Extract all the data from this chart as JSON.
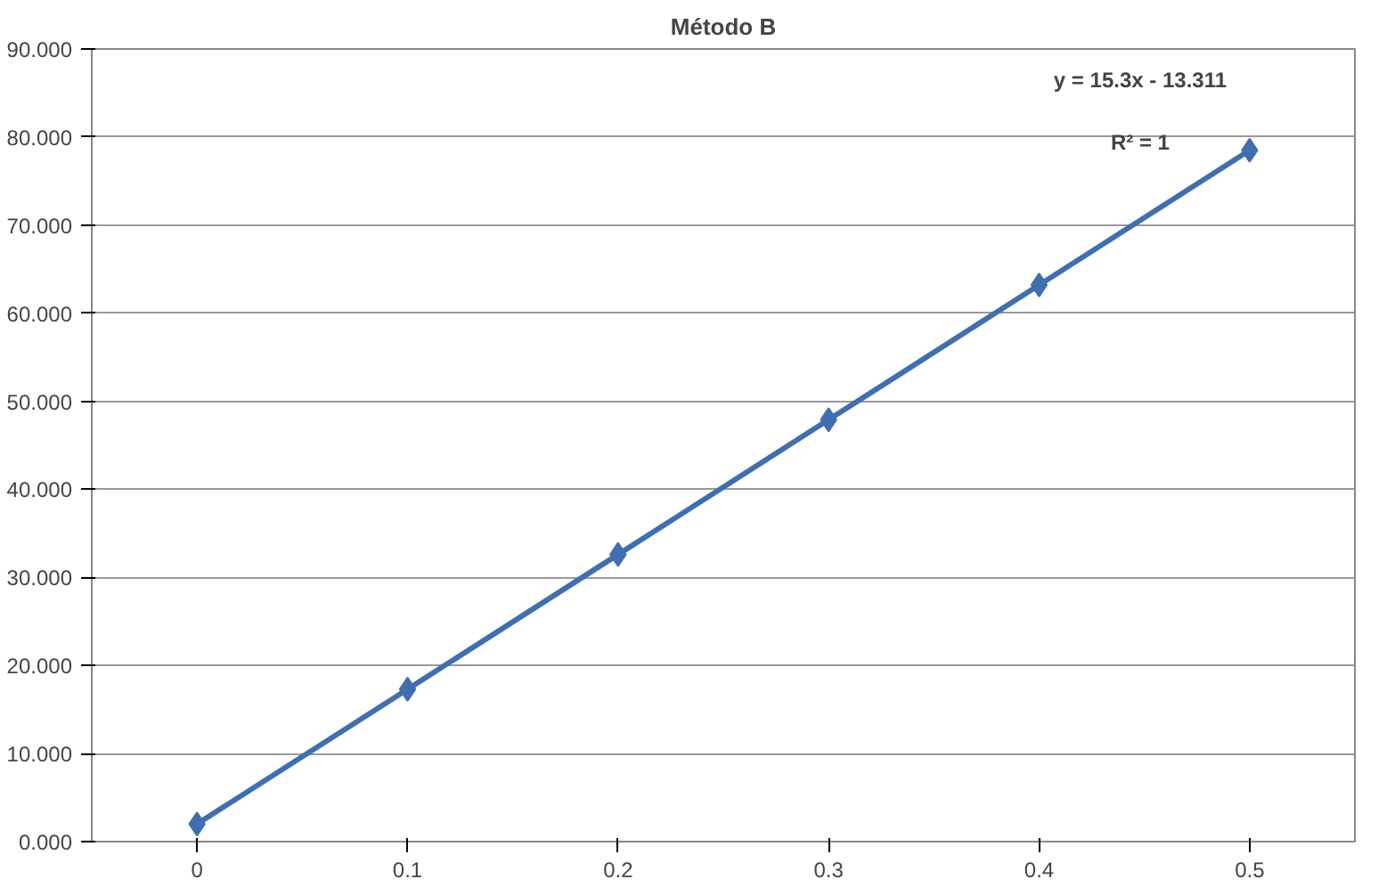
{
  "chart_data": {
    "type": "line",
    "title": "Método B",
    "categories": [
      "0",
      "0.1",
      "0.2",
      "0.3",
      "0.4",
      "0.5"
    ],
    "series": [
      {
        "color": "#3f6fb0",
        "values": [
          2,
          17.3,
          32.6,
          47.9,
          63.2,
          78.5
        ]
      }
    ],
    "ylim": [
      0,
      90
    ],
    "yticks": [
      {
        "value": 0,
        "label": "0.000"
      },
      {
        "value": 10,
        "label": "10.000"
      },
      {
        "value": 20,
        "label": "20.000"
      },
      {
        "value": 30,
        "label": "30.000"
      },
      {
        "value": 40,
        "label": "40.000"
      },
      {
        "value": 50,
        "label": "50.000"
      },
      {
        "value": 60,
        "label": "60.000"
      },
      {
        "value": 70,
        "label": "70.000"
      },
      {
        "value": 80,
        "label": "80.000"
      },
      {
        "value": 90,
        "label": "90.000"
      }
    ],
    "grid": "y",
    "marker": "diamond",
    "line_style": "solid",
    "annotations": [
      "y = 15.3x - 13.311",
      "R² = 1"
    ]
  }
}
